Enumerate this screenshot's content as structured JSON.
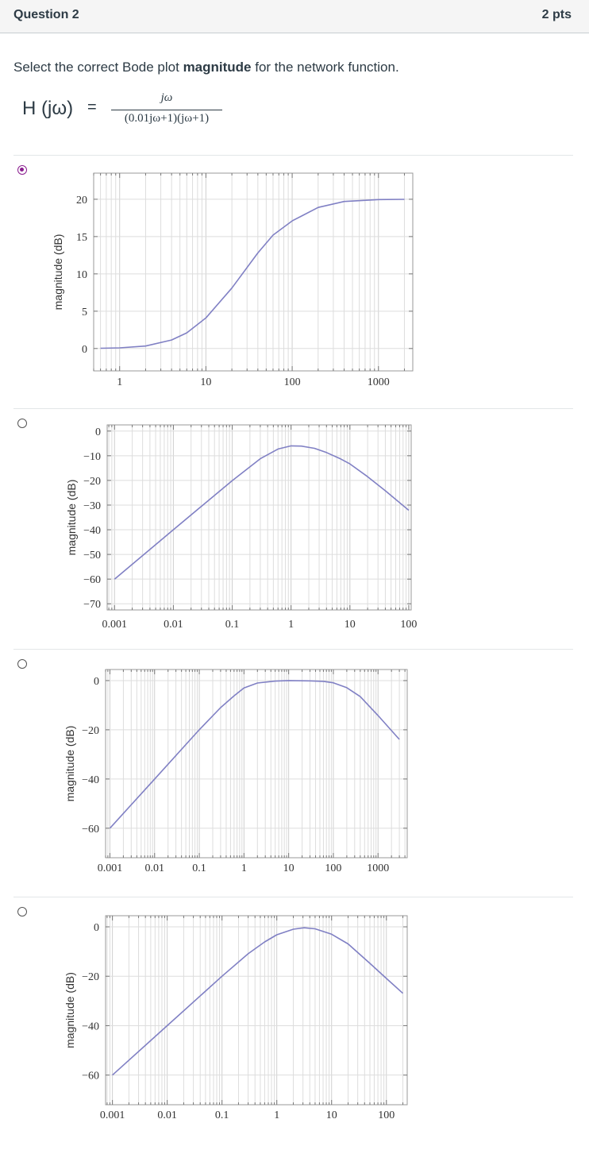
{
  "question": {
    "title": "Question 2",
    "points": "2 pts"
  },
  "prompt": {
    "before": "Select the correct Bode plot ",
    "bold": "magnitude",
    "after": " for the network function."
  },
  "formula": {
    "lhs": "H (jω)",
    "eq": "=",
    "numerator": "jω",
    "denominator": "(0.01jω+1)(jω+1)"
  },
  "options": [
    {
      "selected": true,
      "chart_data": {
        "type": "line",
        "ylabel": "magnitude (dB)",
        "x_scale": "log",
        "xlim": [
          0.5,
          2500
        ],
        "ylim": [
          -3,
          23.5
        ],
        "xticks": [
          1,
          10,
          100,
          1000
        ],
        "xticklabels": [
          "1",
          "10",
          "100",
          "1000"
        ],
        "yticks": [
          0,
          5,
          10,
          15,
          20
        ],
        "yticklabels": [
          "0",
          "5",
          "10",
          "15",
          "20"
        ],
        "series": [
          {
            "x": [
              0.6,
              1,
              2,
              4,
              6,
              10,
              20,
              40,
              60,
              100,
              200,
              400,
              1000,
              2000
            ],
            "y": [
              0.03,
              0.09,
              0.33,
              1.14,
              2.1,
              4.1,
              8.1,
              12.8,
              15.2,
              17.1,
              18.9,
              19.7,
              19.96,
              19.99
            ]
          }
        ],
        "color": "#8080c4"
      }
    },
    {
      "selected": false,
      "chart_data": {
        "type": "line",
        "ylabel": "magnitude (dB)",
        "x_scale": "log",
        "xlim": [
          0.00075,
          110
        ],
        "ylim": [
          -72.5,
          2.5
        ],
        "xticks": [
          0.001,
          0.01,
          0.1,
          1,
          10,
          100
        ],
        "xticklabels": [
          "0.001",
          "0.01",
          "0.1",
          "1",
          "10",
          "100"
        ],
        "yticks": [
          0,
          -10,
          -20,
          -30,
          -40,
          -50,
          -60,
          -70
        ],
        "yticklabels": [
          "0",
          "−10",
          "−20",
          "−30",
          "−40",
          "−50",
          "−60",
          "−70"
        ],
        "series": [
          {
            "x": [
              0.001,
              0.01,
              0.1,
              0.3,
              0.6,
              1,
              1.5,
              2.5,
              4,
              7,
              10,
              20,
              40,
              100
            ],
            "y": [
              -60,
              -40,
              -20.1,
              -11.2,
              -7.3,
              -6.0,
              -6.1,
              -7.0,
              -8.7,
              -11.3,
              -13.3,
              -18.5,
              -24.2,
              -32.1
            ]
          }
        ],
        "color": "#8080c4"
      }
    },
    {
      "selected": false,
      "chart_data": {
        "type": "line",
        "ylabel": "magnitude (dB)",
        "x_scale": "log",
        "xlim": [
          0.0008,
          4500
        ],
        "ylim": [
          -72,
          4.5
        ],
        "xticks": [
          0.001,
          0.01,
          0.1,
          1,
          10,
          100,
          1000
        ],
        "xticklabels": [
          "0.001",
          "0.01",
          "0.1",
          "1",
          "10",
          "100",
          "1000"
        ],
        "yticks": [
          0,
          -20,
          -40,
          -60
        ],
        "yticklabels": [
          "0",
          "−20",
          "−40",
          "−60"
        ],
        "series": [
          {
            "x": [
              0.001,
              0.01,
              0.1,
              0.3,
              0.6,
              1,
              2,
              5,
              10,
              30,
              60,
              100,
              200,
              400,
              1000,
              3000
            ],
            "y": [
              -60,
              -40,
              -20.0,
              -11.0,
              -6.2,
              -3.0,
              -1.0,
              -0.2,
              0,
              -0.1,
              -0.3,
              -0.9,
              -2.9,
              -6.5,
              -14.2,
              -23.9
            ]
          }
        ],
        "color": "#8080c4"
      }
    },
    {
      "selected": false,
      "chart_data": {
        "type": "line",
        "ylabel": "magnitude (dB)",
        "x_scale": "log",
        "xlim": [
          0.00075,
          240
        ],
        "ylim": [
          -72,
          4.5
        ],
        "xticks": [
          0.001,
          0.01,
          0.1,
          1,
          10,
          100
        ],
        "xticklabels": [
          "0.001",
          "0.01",
          "0.1",
          "1",
          "10",
          "100"
        ],
        "yticks": [
          0,
          -20,
          -40,
          -60
        ],
        "yticklabels": [
          "0",
          "−20",
          "−40",
          "−60"
        ],
        "series": [
          {
            "x": [
              0.001,
              0.01,
              0.1,
              0.3,
              0.6,
              1,
              2,
              3.16,
              5,
              10,
              20,
              50,
              100,
              200
            ],
            "y": [
              -60,
              -40,
              -20.0,
              -10.9,
              -6.1,
              -3.2,
              -0.97,
              -0.4,
              -0.8,
              -3.0,
              -6.9,
              -14.8,
              -20.9,
              -26.9
            ]
          }
        ],
        "color": "#8080c4"
      }
    }
  ]
}
